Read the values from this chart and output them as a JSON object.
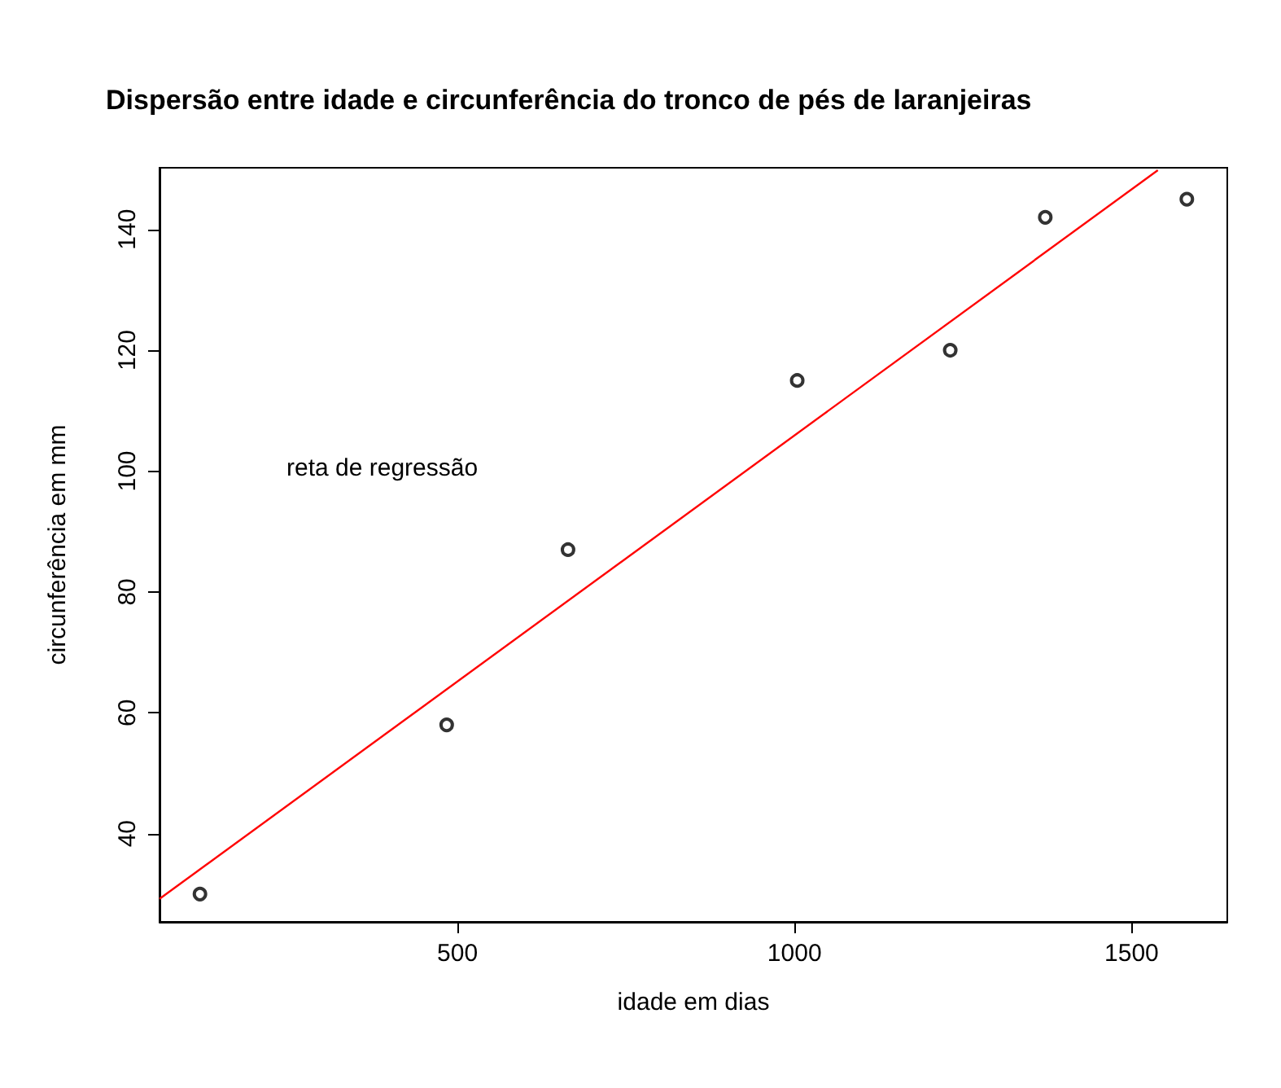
{
  "chart_data": {
    "type": "scatter",
    "title": "Dispersão entre idade e circunferência do tronco de pés de laranjeiras",
    "xlabel": "idade em dias",
    "ylabel": "circunferência em mm",
    "xlim": [
      58,
      1642
    ],
    "ylim": [
      25.4,
      150.2
    ],
    "xticks": [
      500,
      1000,
      1500
    ],
    "yticks": [
      40,
      60,
      80,
      100,
      120,
      140
    ],
    "grid": false,
    "marker": "circle",
    "series": [
      {
        "color": "#000000",
        "x": [
          118,
          484,
          664,
          1004,
          1231,
          1372,
          1582
        ],
        "values": [
          30,
          58,
          87,
          115,
          120,
          142,
          145
        ]
      },
      {
        "type": "line",
        "color": "#ff0000",
        "marker": "none",
        "line_style": "solid",
        "x": [
          58,
          1539
        ],
        "values": [
          29.2,
          149.8
        ]
      }
    ],
    "annotations": [
      "reta de regressão"
    ]
  }
}
